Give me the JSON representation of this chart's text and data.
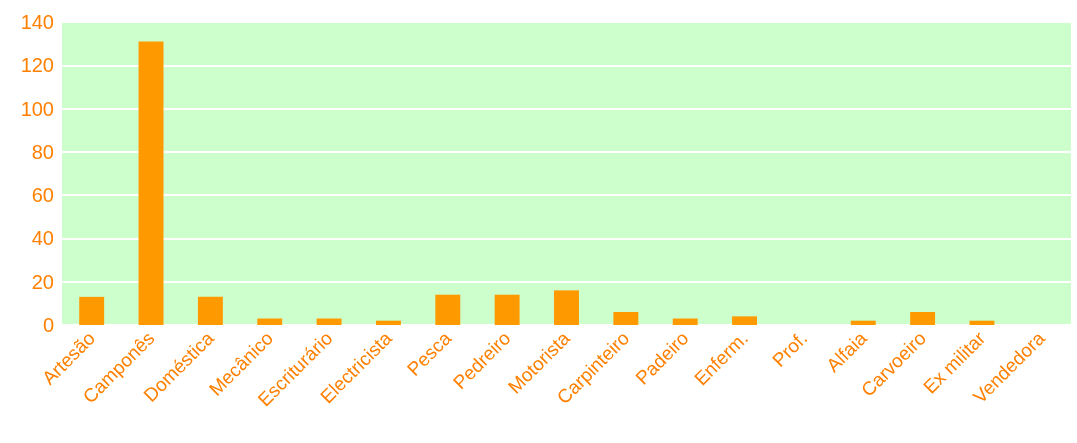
{
  "chart_data": {
    "type": "bar",
    "categories": [
      "Artesão",
      "Camponês",
      "Doméstica",
      "Mecânico",
      "Escriturário",
      "Electricista",
      "Pesca",
      "Pedreiro",
      "Motorista",
      "Carpinteiro",
      "Padeiro",
      "Enferm.",
      "Prof.",
      "Alfaia",
      "Carvoeiro",
      "Ex militar",
      "Vendedora"
    ],
    "values": [
      13,
      131,
      13,
      3,
      3,
      2,
      14,
      14,
      16,
      6,
      3,
      4,
      0,
      2,
      6,
      2,
      0
    ],
    "color": "#ff9900",
    "ylim": [
      0,
      140
    ],
    "yticks": [
      0,
      20,
      40,
      60,
      80,
      100,
      120,
      140
    ],
    "grid": "y"
  }
}
